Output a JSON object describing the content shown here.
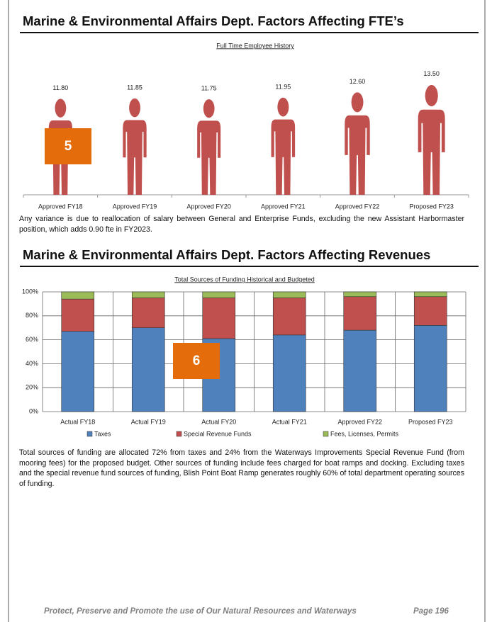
{
  "heading_fte": "Marine & Environmental Affairs Dept. Factors Affecting FTE’s",
  "fte_note": "Any variance is due to reallocation of salary between General and Enterprise Funds, excluding the new Assistant Harbormaster position, which adds 0.90 fte in FY2023.",
  "heading_revenue": "Marine & Environmental Affairs Dept. Factors Affecting Revenues",
  "revenue_note": "Total sources of funding are allocated 72% from taxes and 24% from the Waterways Improvements Special Revenue Fund (from mooring fees) for the proposed budget. Other sources of funding include fees charged for boat ramps and docking. Excluding taxes and the special revenue fund sources of funding, Blish Point Boat Ramp generates roughly 60% of total department operating sources of funding.",
  "markers": [
    "5",
    "6"
  ],
  "footer": {
    "motto": "Protect, Preserve and Promote the use of Our Natural Resources and Waterways",
    "page": "Page 196"
  },
  "chart_data": [
    {
      "type": "pictograph",
      "title": "Full Time Employee History",
      "categories": [
        "Approved FY18",
        "Approved FY19",
        "Approved FY20",
        "Approved FY21",
        "Approved FY22",
        "Proposed FY23"
      ],
      "values": [
        11.8,
        11.85,
        11.75,
        11.95,
        12.6,
        13.5
      ],
      "value_labels": [
        "11.80",
        "11.85",
        "11.75",
        "11.95",
        "12.60",
        "13.50"
      ],
      "color": "#c0504d",
      "ylim": [
        0,
        14
      ]
    },
    {
      "type": "stacked_bar",
      "title": "Total Sources of Funding Historical and Budgeted",
      "categories": [
        "Actual FY18",
        "Actual FY19",
        "Actual FY20",
        "Actual FY21",
        "Approved FY22",
        "Proposed FY23"
      ],
      "series": [
        {
          "name": "Taxes",
          "color": "#4f81bd",
          "values": [
            67,
            70,
            61,
            64,
            68,
            72
          ]
        },
        {
          "name": "Special Revenue Funds",
          "color": "#c0504d",
          "values": [
            27,
            25,
            34,
            31,
            28,
            24
          ]
        },
        {
          "name": "Fees, Licenses, Permits",
          "color": "#9bbb59",
          "values": [
            6,
            5,
            5,
            5,
            4,
            4
          ]
        }
      ],
      "ylim": [
        0,
        100
      ],
      "yticks": [
        {
          "value": 0,
          "label": "0%"
        },
        {
          "value": 20,
          "label": "20%"
        },
        {
          "value": 40,
          "label": "40%"
        },
        {
          "value": 60,
          "label": "60%"
        },
        {
          "value": 80,
          "label": "80%"
        },
        {
          "value": 100,
          "label": "100%"
        }
      ],
      "grid": true,
      "legend": "bottom"
    }
  ]
}
